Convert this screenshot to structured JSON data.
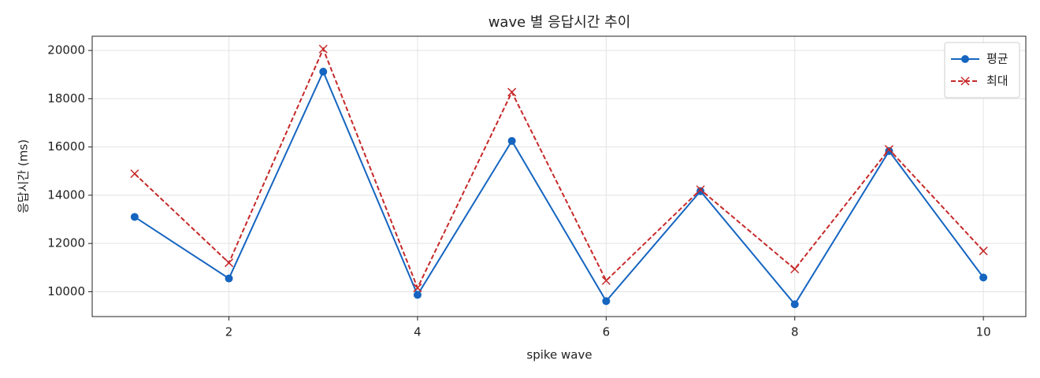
{
  "chart_data": {
    "type": "line",
    "title": "wave 별 응답시간 추이",
    "x_label": "spike wave",
    "y_label": "응답시간 (ms)",
    "x": [
      1,
      2,
      3,
      4,
      5,
      6,
      7,
      8,
      9,
      10
    ],
    "series": [
      {
        "name": "평균",
        "color": "#1565c0",
        "marker": "o",
        "dash": false,
        "values": [
          13100,
          10550,
          19120,
          9870,
          16250,
          9610,
          14170,
          9480,
          15830,
          10590
        ]
      },
      {
        "name": "최대",
        "color": "#c62828",
        "marker": "x",
        "dash": true,
        "values": [
          14890,
          11200,
          20060,
          10160,
          18270,
          10460,
          14230,
          10940,
          15900,
          11690
        ]
      }
    ],
    "xlim": [
      0.55,
      10.45
    ],
    "xticks": [
      2,
      4,
      6,
      8,
      10
    ],
    "ylim": [
      8970,
      20590
    ],
    "yticks": [
      10000,
      12000,
      14000,
      16000,
      18000,
      20000
    ],
    "grid": true,
    "legend": "upper right"
  }
}
